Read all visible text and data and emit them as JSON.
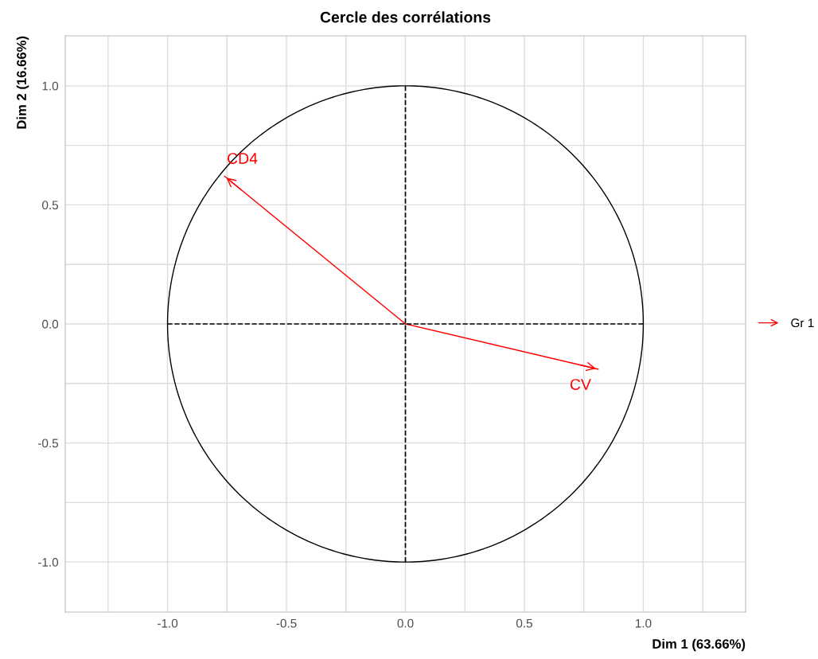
{
  "chart_data": {
    "type": "line",
    "title": "Cercle des corrélations",
    "xlabel": "Dim 1 (63.66%)",
    "ylabel": "Dim 2 (16.66%)",
    "legend_title": "Gr 1",
    "legend": "right",
    "grid": true,
    "series": [
      {
        "name": "CD4",
        "color": "#ff0000",
        "x": [
          0,
          -0.76
        ],
        "values": [
          0,
          0.62
        ]
      },
      {
        "name": "CV",
        "color": "#ff0000",
        "x": [
          0,
          0.81
        ],
        "values": [
          0,
          -0.19
        ]
      },
      {
        "type": "line",
        "color": "#000000",
        "line_style": "dashed",
        "x": [
          -1,
          1
        ],
        "values": [
          0,
          0
        ]
      },
      {
        "type": "line",
        "color": "#000000",
        "line_style": "dashed",
        "x": [
          0,
          0
        ],
        "values": [
          -1,
          1
        ]
      }
    ],
    "xlim": [
      -1.43,
      1.43
    ],
    "ylim": [
      -1.21,
      1.21
    ],
    "xticks": [
      {
        "value": -1.25,
        "label": null
      },
      {
        "value": -1,
        "label": "-1.0"
      },
      {
        "value": -0.75,
        "label": null
      },
      {
        "value": -0.5,
        "label": "-0.5"
      },
      {
        "value": -0.25,
        "label": null
      },
      {
        "value": 0,
        "label": "0.0"
      },
      {
        "value": 0.25,
        "label": null
      },
      {
        "value": 0.5,
        "label": "0.5"
      },
      {
        "value": 0.75,
        "label": null
      },
      {
        "value": 1,
        "label": "1.0"
      },
      {
        "value": 1.25,
        "label": null
      }
    ],
    "yticks": [
      {
        "value": -1,
        "label": "-1.0"
      },
      {
        "value": -0.75,
        "label": null
      },
      {
        "value": -0.5,
        "label": "-0.5"
      },
      {
        "value": -0.25,
        "label": null
      },
      {
        "value": 0,
        "label": "0.0"
      },
      {
        "value": 0.25,
        "label": null
      },
      {
        "value": 0.5,
        "label": "0.5"
      },
      {
        "value": 0.75,
        "label": null
      },
      {
        "value": 1,
        "label": "1.0"
      }
    ]
  }
}
